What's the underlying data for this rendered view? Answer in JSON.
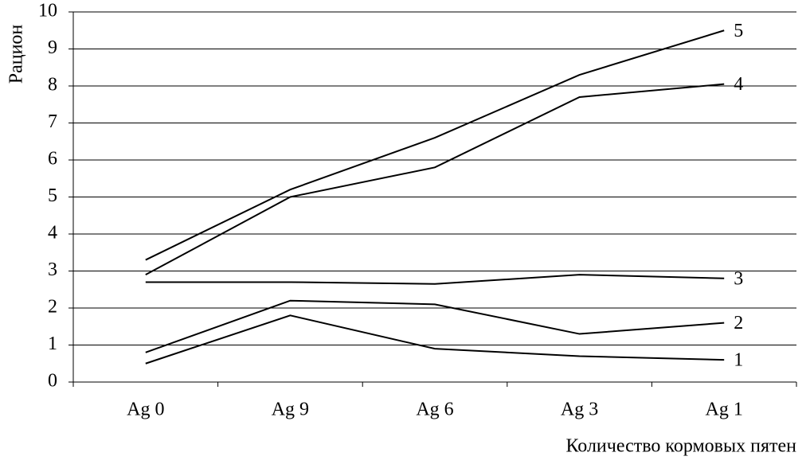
{
  "chart_data": {
    "type": "line",
    "y_label": "Рацион",
    "x_label": "Количество кормовых пятен",
    "categories": [
      "Ag 0",
      "Ag 9",
      "Ag 6",
      "Ag 3",
      "Ag 1"
    ],
    "series": [
      {
        "name": "1",
        "color": "#000000",
        "values": [
          0.5,
          1.8,
          0.9,
          0.7,
          0.6
        ]
      },
      {
        "name": "2",
        "color": "#000000",
        "values": [
          0.8,
          2.2,
          2.1,
          1.3,
          1.6
        ]
      },
      {
        "name": "3",
        "color": "#000000",
        "values": [
          2.7,
          2.7,
          2.65,
          2.9,
          2.8
        ]
      },
      {
        "name": "4",
        "color": "#000000",
        "values": [
          2.9,
          5.0,
          5.8,
          7.7,
          8.05
        ]
      },
      {
        "name": "5",
        "color": "#000000",
        "values": [
          3.3,
          5.2,
          6.6,
          8.3,
          9.5
        ]
      }
    ],
    "ylim": [
      0,
      10
    ],
    "yticks": [
      0,
      1,
      2,
      3,
      4,
      5,
      6,
      7,
      8,
      9,
      10
    ],
    "grid": true
  }
}
